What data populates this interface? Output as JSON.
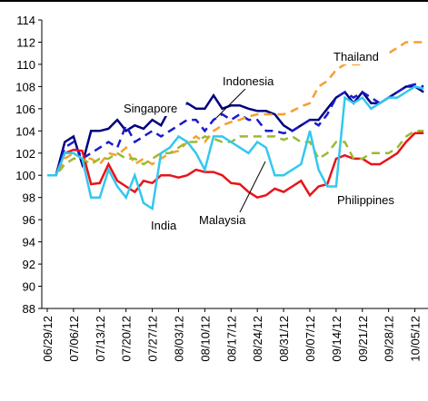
{
  "chart_data": {
    "type": "line",
    "categories": [
      "06/29/12",
      null,
      null,
      "07/06/12",
      null,
      null,
      "07/13/12",
      null,
      null,
      "07/20/12",
      null,
      null,
      "07/27/12",
      null,
      null,
      "08/03/12",
      null,
      null,
      "08/10/12",
      null,
      null,
      "08/17/12",
      null,
      null,
      "08/24/12",
      null,
      null,
      "08/31/12",
      null,
      null,
      "09/07/12",
      null,
      null,
      "09/14/12",
      null,
      null,
      "09/21/12",
      null,
      null,
      "09/28/12",
      null,
      null,
      "10/05/12",
      null
    ],
    "ylim": [
      88,
      114
    ],
    "yticks": [
      88,
      90,
      92,
      94,
      96,
      98,
      100,
      102,
      104,
      106,
      108,
      110,
      112,
      114
    ],
    "series": [
      {
        "name": "Singapore",
        "color": "#000080",
        "dash": false,
        "values": [
          100,
          100,
          103,
          103.5,
          101,
          104,
          104,
          104.2,
          105,
          104,
          104.5,
          104.2,
          105,
          104.5,
          106,
          106,
          106.5,
          106,
          106,
          107.2,
          106,
          106.3,
          106.3,
          106,
          105.8,
          105.8,
          105.5,
          104.5,
          104,
          104.5,
          105,
          105,
          106,
          107,
          107.5,
          106.5,
          107.5,
          106.5,
          106.5,
          107,
          107.5,
          108,
          108,
          107.5
        ]
      },
      {
        "name": "Indonesia",
        "color": "#1a1acc",
        "dash": true,
        "values": [
          100,
          100,
          102.5,
          103,
          101.5,
          102,
          102.5,
          103,
          102.5,
          104.5,
          103,
          103.5,
          104,
          103.5,
          104,
          104.5,
          105,
          105,
          104,
          105,
          105.5,
          105,
          105.5,
          105,
          105,
          104,
          104,
          103.8,
          104,
          104.5,
          105,
          104.5,
          105.5,
          107,
          107.5,
          107,
          107.5,
          107,
          106.5,
          107,
          107.5,
          108,
          108.2,
          108
        ]
      },
      {
        "name": "Thailand",
        "color": "#f5a030",
        "dash": true,
        "values": [
          100,
          100,
          101.5,
          102,
          101.5,
          101.5,
          101,
          102,
          101.8,
          102.5,
          101,
          101.5,
          101,
          101.5,
          102,
          102.2,
          103,
          103.5,
          103,
          104,
          104.5,
          104.8,
          105,
          105.3,
          105.5,
          105.5,
          105.5,
          105.5,
          105.8,
          106.2,
          106.5,
          108,
          108.5,
          109.5,
          110,
          110,
          110,
          110.5,
          111,
          111,
          111.5,
          112,
          112,
          112
        ]
      },
      {
        "name": "Philippines",
        "color": "#e8141a",
        "dash": false,
        "values": [
          100,
          100,
          102,
          102.3,
          102.2,
          99.2,
          99.3,
          101,
          99.5,
          99,
          98.5,
          99.5,
          99.3,
          100,
          100,
          99.8,
          100,
          100.5,
          100.3,
          100.3,
          100,
          99.3,
          99.2,
          98.5,
          98,
          98.2,
          98.8,
          98.5,
          99,
          99.5,
          98.2,
          99,
          99.2,
          101.5,
          101.8,
          101.5,
          101.5,
          101,
          101,
          101.5,
          102,
          103,
          103.8,
          103.8
        ]
      },
      {
        "name": "Malaysia",
        "color": "#9abb30",
        "dash": true,
        "values": [
          100,
          100,
          101,
          101.5,
          101.5,
          101,
          101.5,
          101.5,
          102,
          101.5,
          101.5,
          101,
          101.5,
          102,
          102,
          102.5,
          103,
          103,
          103.5,
          103.3,
          103,
          103,
          103.5,
          103.5,
          103.5,
          103.5,
          103.5,
          103.2,
          103.5,
          103,
          103,
          101.5,
          102,
          103,
          103,
          101.5,
          101.5,
          102,
          102,
          102,
          102.5,
          103.5,
          104,
          104
        ]
      },
      {
        "name": "India",
        "color": "#33c8ee",
        "dash": false,
        "values": [
          100,
          100,
          102,
          102,
          101.5,
          98,
          98,
          100.5,
          99,
          98,
          100,
          97.5,
          97,
          102,
          102.5,
          103.5,
          103,
          102,
          100.5,
          103.5,
          103.5,
          103,
          102.5,
          102,
          103,
          102.5,
          100,
          100,
          100.5,
          101,
          104,
          100.5,
          99,
          99,
          107,
          106.5,
          107,
          106,
          106.5,
          107,
          107,
          107.5,
          108,
          107.8
        ]
      }
    ]
  }
}
